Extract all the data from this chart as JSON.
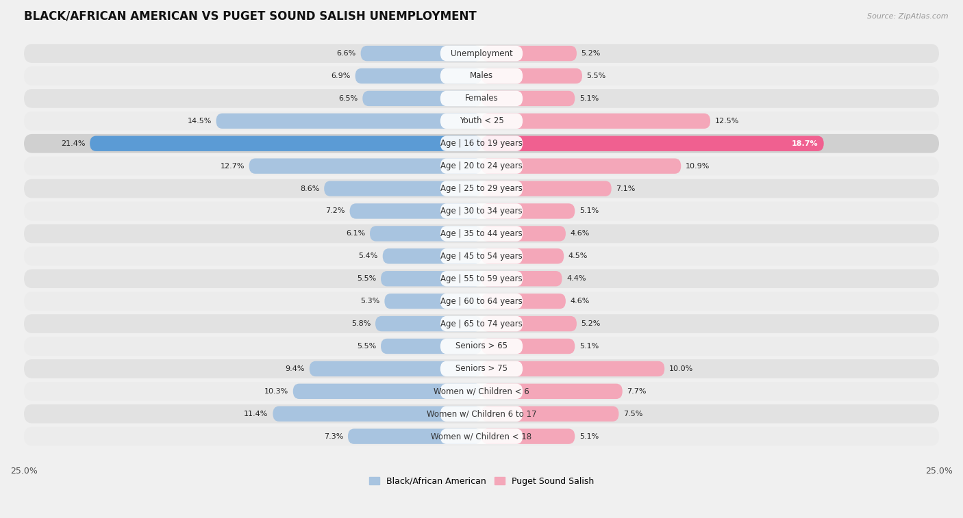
{
  "title": "BLACK/AFRICAN AMERICAN VS PUGET SOUND SALISH UNEMPLOYMENT",
  "source": "Source: ZipAtlas.com",
  "categories": [
    "Unemployment",
    "Males",
    "Females",
    "Youth < 25",
    "Age | 16 to 19 years",
    "Age | 20 to 24 years",
    "Age | 25 to 29 years",
    "Age | 30 to 34 years",
    "Age | 35 to 44 years",
    "Age | 45 to 54 years",
    "Age | 55 to 59 years",
    "Age | 60 to 64 years",
    "Age | 65 to 74 years",
    "Seniors > 65",
    "Seniors > 75",
    "Women w/ Children < 6",
    "Women w/ Children 6 to 17",
    "Women w/ Children < 18"
  ],
  "left_values": [
    6.6,
    6.9,
    6.5,
    14.5,
    21.4,
    12.7,
    8.6,
    7.2,
    6.1,
    5.4,
    5.5,
    5.3,
    5.8,
    5.5,
    9.4,
    10.3,
    11.4,
    7.3
  ],
  "right_values": [
    5.2,
    5.5,
    5.1,
    12.5,
    18.7,
    10.9,
    7.1,
    5.1,
    4.6,
    4.5,
    4.4,
    4.6,
    5.2,
    5.1,
    10.0,
    7.7,
    7.5,
    5.1
  ],
  "left_color": "#a8c4e0",
  "right_color": "#f4a7b9",
  "highlight_left_color": "#5b9bd5",
  "highlight_right_color": "#f06090",
  "highlight_row": 4,
  "xlim": 25.0,
  "background_color": "#f0f0f0",
  "row_light_color": "#e8e8e8",
  "row_dark_color": "#d8d8d8",
  "legend_left": "Black/African American",
  "legend_right": "Puget Sound Salish",
  "title_fontsize": 12,
  "label_fontsize": 8.5,
  "value_fontsize": 8.0
}
